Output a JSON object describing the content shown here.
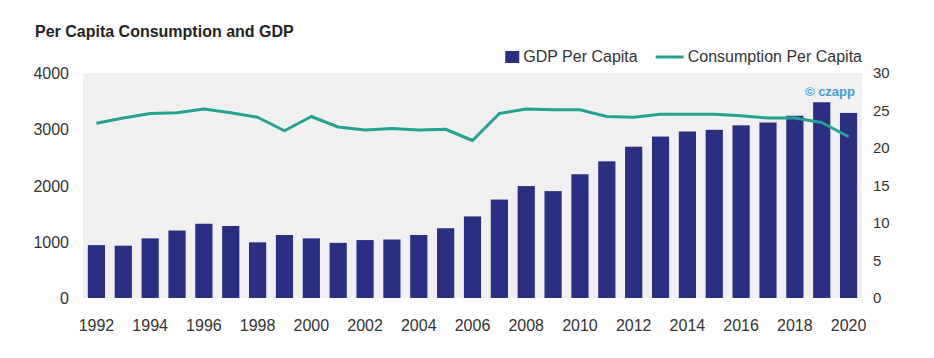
{
  "chart_data": {
    "type": "bar",
    "title": "Per Capita Consumption and GDP",
    "annotations": [
      "© czapp"
    ],
    "categories": [
      "1992",
      null,
      "1994",
      null,
      "1996",
      null,
      "1998",
      null,
      "2000",
      null,
      "2002",
      null,
      "2004",
      null,
      "2006",
      null,
      "2008",
      null,
      "2010",
      null,
      "2012",
      null,
      "2014",
      null,
      "2016",
      null,
      "2018",
      null,
      "2020"
    ],
    "series": [
      {
        "name": "GDP Per Capita",
        "type": "bar",
        "color": "#2b2f84",
        "values": [
          940,
          930,
          1060,
          1200,
          1320,
          1280,
          990,
          1120,
          1060,
          980,
          1030,
          1040,
          1120,
          1240,
          1450,
          1750,
          1990,
          1900,
          2200,
          2430,
          2690,
          2870,
          2960,
          2990,
          3070,
          3120,
          3240,
          3480,
          3290
        ]
      },
      {
        "name": "Consumption Per Capita",
        "type": "line",
        "axis": "y2",
        "color": "#22a295",
        "values": [
          23.3,
          24.0,
          24.6,
          24.7,
          25.2,
          24.7,
          24.1,
          22.3,
          24.2,
          22.8,
          22.4,
          22.6,
          22.4,
          22.5,
          21.0,
          24.6,
          25.2,
          25.1,
          25.1,
          24.2,
          24.1,
          24.5,
          24.5,
          24.5,
          24.3,
          24.0,
          24.0,
          23.4,
          21.5
        ]
      }
    ],
    "ylim": [
      0,
      4000
    ],
    "yticks": [
      0,
      1000,
      2000,
      3000,
      4000
    ],
    "y2lim": [
      0,
      30
    ],
    "y2ticks": [
      0,
      5,
      10,
      15,
      20,
      25,
      30
    ],
    "grid": false,
    "legend": "top-right"
  }
}
